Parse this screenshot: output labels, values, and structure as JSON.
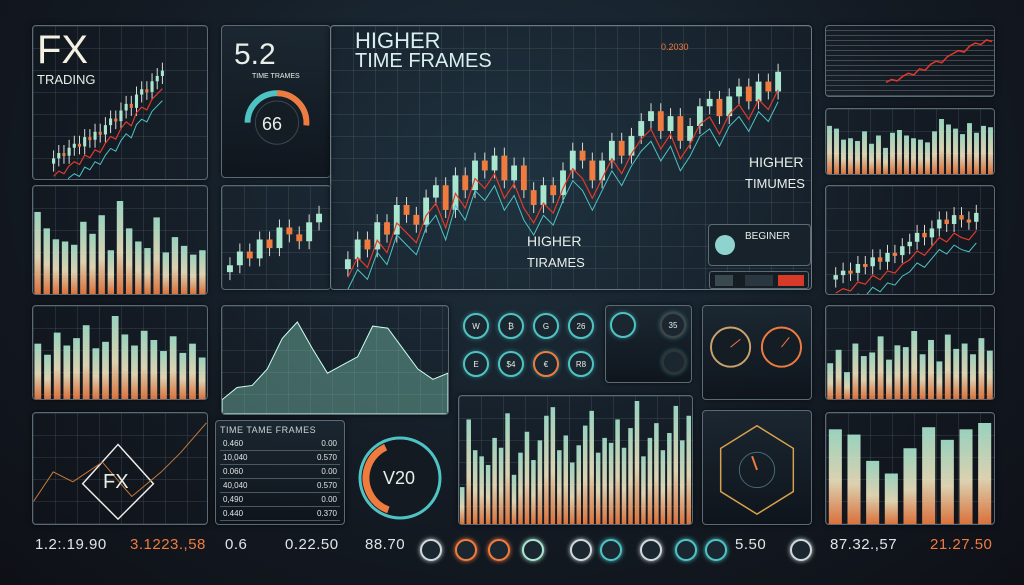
{
  "colors": {
    "teal": "#a8e6cf",
    "orange": "#f07b3f",
    "red": "#e03a2a",
    "cyan": "#4ec3c4",
    "cream": "#f2e6c0"
  },
  "fx_panel": {
    "title": "FX",
    "subtitle": "TRADING",
    "candles": [
      22,
      26,
      24,
      30,
      33,
      31,
      38,
      36,
      42,
      40,
      47,
      52,
      50,
      58,
      63,
      60,
      70,
      74,
      72,
      80,
      84,
      88
    ]
  },
  "gauge_panel": {
    "value": "5.2",
    "caption": "TIME TRAMES",
    "dial_value": "66"
  },
  "main_chart": {
    "title_line1": "HIGHER",
    "title_line2": "TIME FRAMES",
    "price_label": "0.2030",
    "overlay_1_line1": "HIGHER",
    "overlay_1_line2": "TIMUMES",
    "overlay_2_line1": "HIGHER",
    "overlay_2_line2": "TIRAMES",
    "badge": "BEGINER",
    "candles": [
      30,
      38,
      34,
      45,
      40,
      52,
      48,
      44,
      55,
      60,
      50,
      64,
      58,
      70,
      66,
      72,
      62,
      68,
      58,
      52,
      60,
      56,
      66,
      74,
      70,
      62,
      70,
      78,
      72,
      80,
      86,
      90,
      82,
      88,
      78,
      84,
      92,
      95,
      88,
      96,
      100,
      94,
      102,
      98,
      106
    ]
  },
  "right_table_chart": {
    "line": [
      10,
      14,
      12,
      18,
      22,
      20,
      28,
      26,
      34,
      38,
      36,
      44,
      48,
      52,
      50,
      58,
      62,
      60,
      66,
      64
    ]
  },
  "right_bars_1": {
    "values": [
      70,
      66,
      50,
      52,
      48,
      62,
      44,
      56,
      38,
      60,
      64,
      56,
      52,
      50,
      46,
      62,
      80,
      72,
      66,
      58,
      74,
      60,
      70,
      68
    ]
  },
  "left_bars_1": {
    "values": [
      75,
      60,
      50,
      48,
      45,
      66,
      55,
      72,
      40,
      85,
      60,
      48,
      42,
      70,
      38,
      52,
      44,
      36,
      40
    ]
  },
  "right_candles": {
    "candles": [
      20,
      24,
      22,
      30,
      28,
      36,
      32,
      40,
      38,
      46,
      50,
      58,
      54,
      62,
      70,
      66,
      74,
      70,
      68,
      76
    ]
  },
  "left_bars_2": {
    "values": [
      60,
      48,
      72,
      58,
      66,
      80,
      55,
      62,
      90,
      70,
      58,
      74,
      64,
      52,
      68,
      50,
      60,
      45
    ]
  },
  "area_chart": {
    "values": [
      10,
      22,
      24,
      40,
      70,
      86,
      60,
      36,
      44,
      52,
      82,
      80,
      60,
      40,
      30,
      36
    ]
  },
  "icon_grid": {
    "items": [
      {
        "glyph": "W"
      },
      {
        "glyph": "₿"
      },
      {
        "glyph": "G"
      },
      {
        "glyph": "26"
      },
      {
        "glyph": "E"
      },
      {
        "glyph": "$4"
      },
      {
        "glyph": "€"
      },
      {
        "glyph": "R8"
      }
    ]
  },
  "mini_panel": {
    "value": "35"
  },
  "center_bars": {
    "values": [
      30,
      85,
      60,
      55,
      48,
      70,
      62,
      90,
      40,
      58,
      75,
      52,
      68,
      88,
      95,
      60,
      72,
      50,
      64,
      80,
      92,
      58,
      70,
      66,
      85,
      62,
      78,
      100,
      55,
      70,
      82,
      60,
      74,
      96,
      68,
      88
    ]
  },
  "right_bars_2": {
    "values": [
      40,
      55,
      30,
      62,
      48,
      52,
      70,
      44,
      60,
      58,
      76,
      50,
      66,
      42,
      72,
      56,
      62,
      50,
      68,
      54
    ]
  },
  "fx_diamond": {
    "label": "FX"
  },
  "time_table": {
    "title": "TIME TAME FRAMES",
    "rows": [
      [
        "0.460",
        "0.00"
      ],
      [
        "10,040",
        "0.570"
      ],
      [
        "0.060",
        "0.00"
      ],
      [
        "40,040",
        "0.570"
      ],
      [
        "0,490",
        "0.00"
      ],
      [
        "0.440",
        "0.370"
      ]
    ]
  },
  "v20_gauge": {
    "value": "V20"
  },
  "right_bars_3": {
    "values": [
      90,
      85,
      60,
      48,
      72,
      92,
      80,
      90,
      96
    ]
  },
  "readouts": [
    {
      "value": "1.2:.19.90",
      "color": "#dfe5e6"
    },
    {
      "value": "3.1223.,58",
      "color": "#f07b3f"
    },
    {
      "value": "0.6",
      "color": "#dfe5e6"
    },
    {
      "value": "0.22.50",
      "color": "#dfe5e6"
    },
    {
      "value": "88.70",
      "color": "#dfe5e6"
    },
    {
      "value": "5.50",
      "color": "#dfe5e6"
    },
    {
      "value": "87.32.,57",
      "color": "#dfe5e6"
    },
    {
      "value": "21.27.50",
      "color": "#f07b3f"
    }
  ],
  "bottom_icons": [
    {
      "name": "d-coin",
      "color": "#cfd8da"
    },
    {
      "name": "orange-coin",
      "color": "#f07b3f"
    },
    {
      "name": "orange-ring",
      "color": "#f07b3f"
    },
    {
      "name": "mountain",
      "color": "#a8e6cf"
    },
    {
      "name": "globe",
      "color": "#cfd8da"
    },
    {
      "name": "gem",
      "color": "#4ec3c4"
    },
    {
      "name": "toggle",
      "color": "#cfd8da"
    },
    {
      "name": "shield",
      "color": "#4ec3c4"
    },
    {
      "name": "e-coin",
      "color": "#4ec3c4"
    },
    {
      "name": "wallet",
      "color": "#cfd8da"
    }
  ]
}
